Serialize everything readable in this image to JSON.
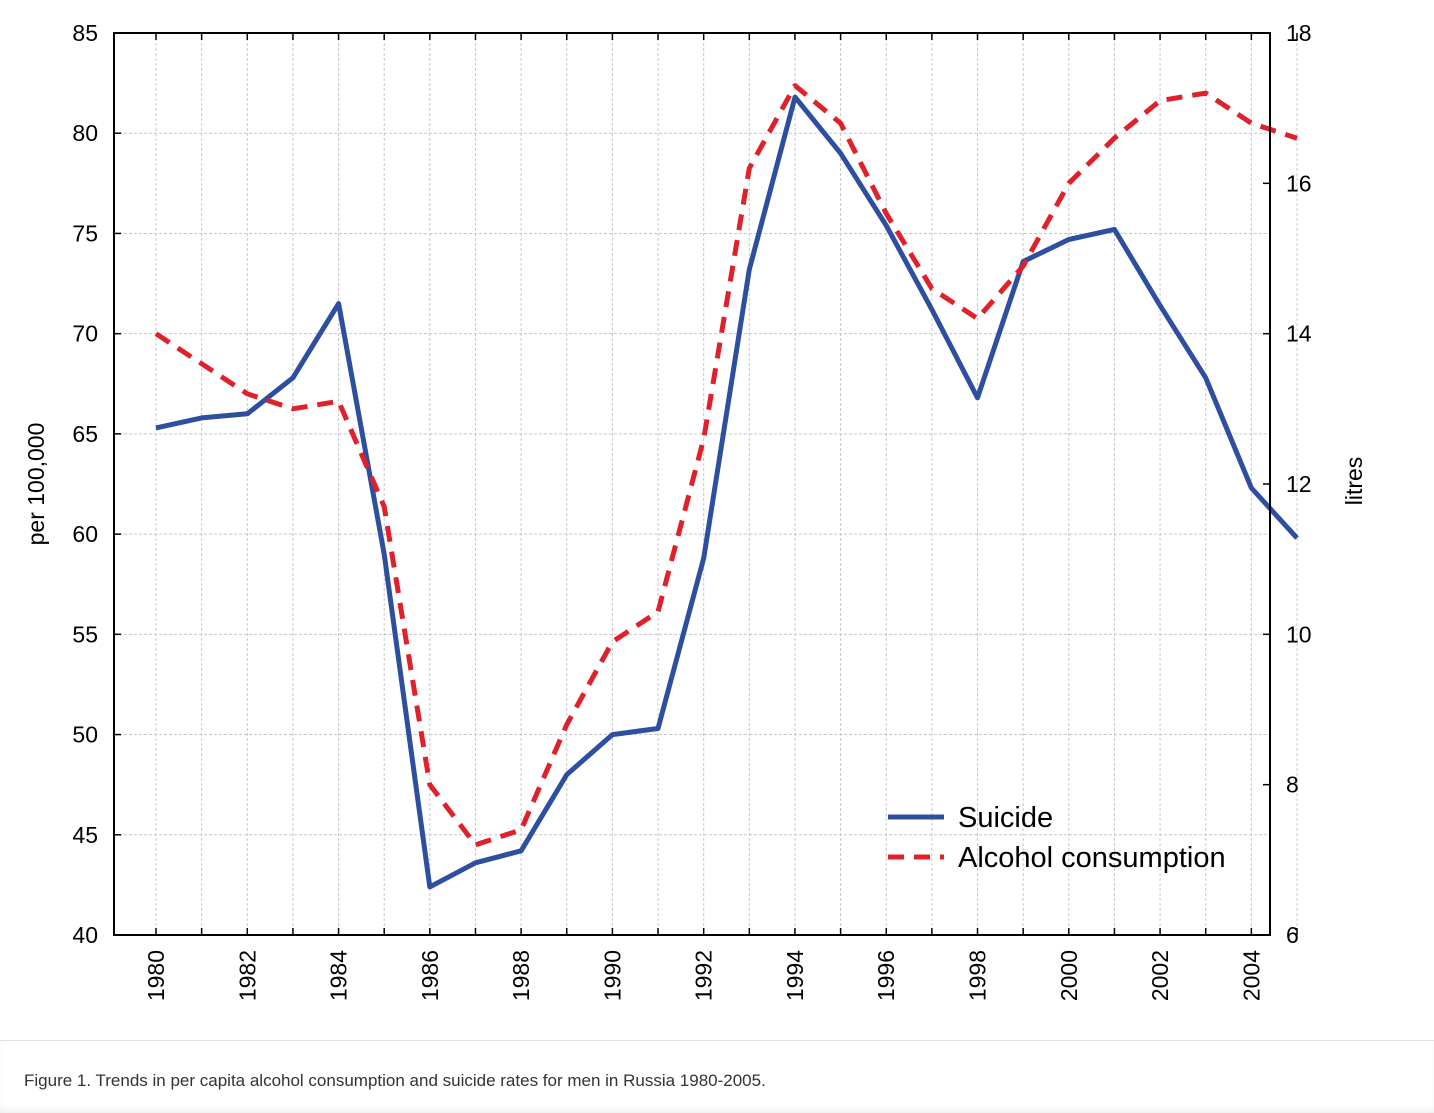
{
  "caption": "Figure 1. Trends in per capita alcohol consumption and suicide rates for men in Russia 1980-2005.",
  "chart_data": {
    "type": "line",
    "title": "",
    "xlabel": "",
    "ylabel": "per 100,000",
    "ylabel_right": "litres",
    "xlim": [
      1980,
      2005
    ],
    "ylim": [
      40,
      85
    ],
    "ylim_right": [
      6,
      18
    ],
    "x_ticks": [
      "1980",
      "1982",
      "1984",
      "1986",
      "1988",
      "1990",
      "1992",
      "1994",
      "1996",
      "1998",
      "2000",
      "2002",
      "2004"
    ],
    "y_ticks": [
      "40",
      "45",
      "50",
      "55",
      "60",
      "65",
      "70",
      "75",
      "80",
      "85"
    ],
    "y_right_ticks": [
      "6",
      "8",
      "10",
      "12",
      "14",
      "16",
      "18"
    ],
    "grid": true,
    "legend_position": "bottom-right",
    "x": [
      1980,
      1981,
      1982,
      1983,
      1984,
      1985,
      1986,
      1987,
      1988,
      1989,
      1990,
      1991,
      1992,
      1993,
      1994,
      1995,
      1996,
      1997,
      1998,
      1999,
      2000,
      2001,
      2002,
      2003,
      2004,
      2005
    ],
    "series": [
      {
        "name": "Suicide",
        "axis": "left",
        "color": "#2e4fa0",
        "style": "solid",
        "values": [
          65.3,
          65.8,
          66.0,
          67.8,
          71.5,
          59.0,
          42.4,
          43.6,
          44.2,
          48.0,
          50.0,
          50.3,
          58.8,
          73.2,
          81.8,
          79.0,
          75.4,
          71.2,
          66.8,
          73.6,
          74.7,
          75.2,
          71.4,
          67.8,
          62.3,
          59.8
        ]
      },
      {
        "name": "Alcohol consumption",
        "axis": "right",
        "color": "#e0202a",
        "style": "dashed",
        "values": [
          14.0,
          13.6,
          13.2,
          13.0,
          13.1,
          11.7,
          8.0,
          7.2,
          7.4,
          8.8,
          9.9,
          10.3,
          12.6,
          16.2,
          17.3,
          16.8,
          15.6,
          14.6,
          14.2,
          14.9,
          16.0,
          16.6,
          17.1,
          17.2,
          16.8,
          16.6
        ]
      }
    ]
  }
}
